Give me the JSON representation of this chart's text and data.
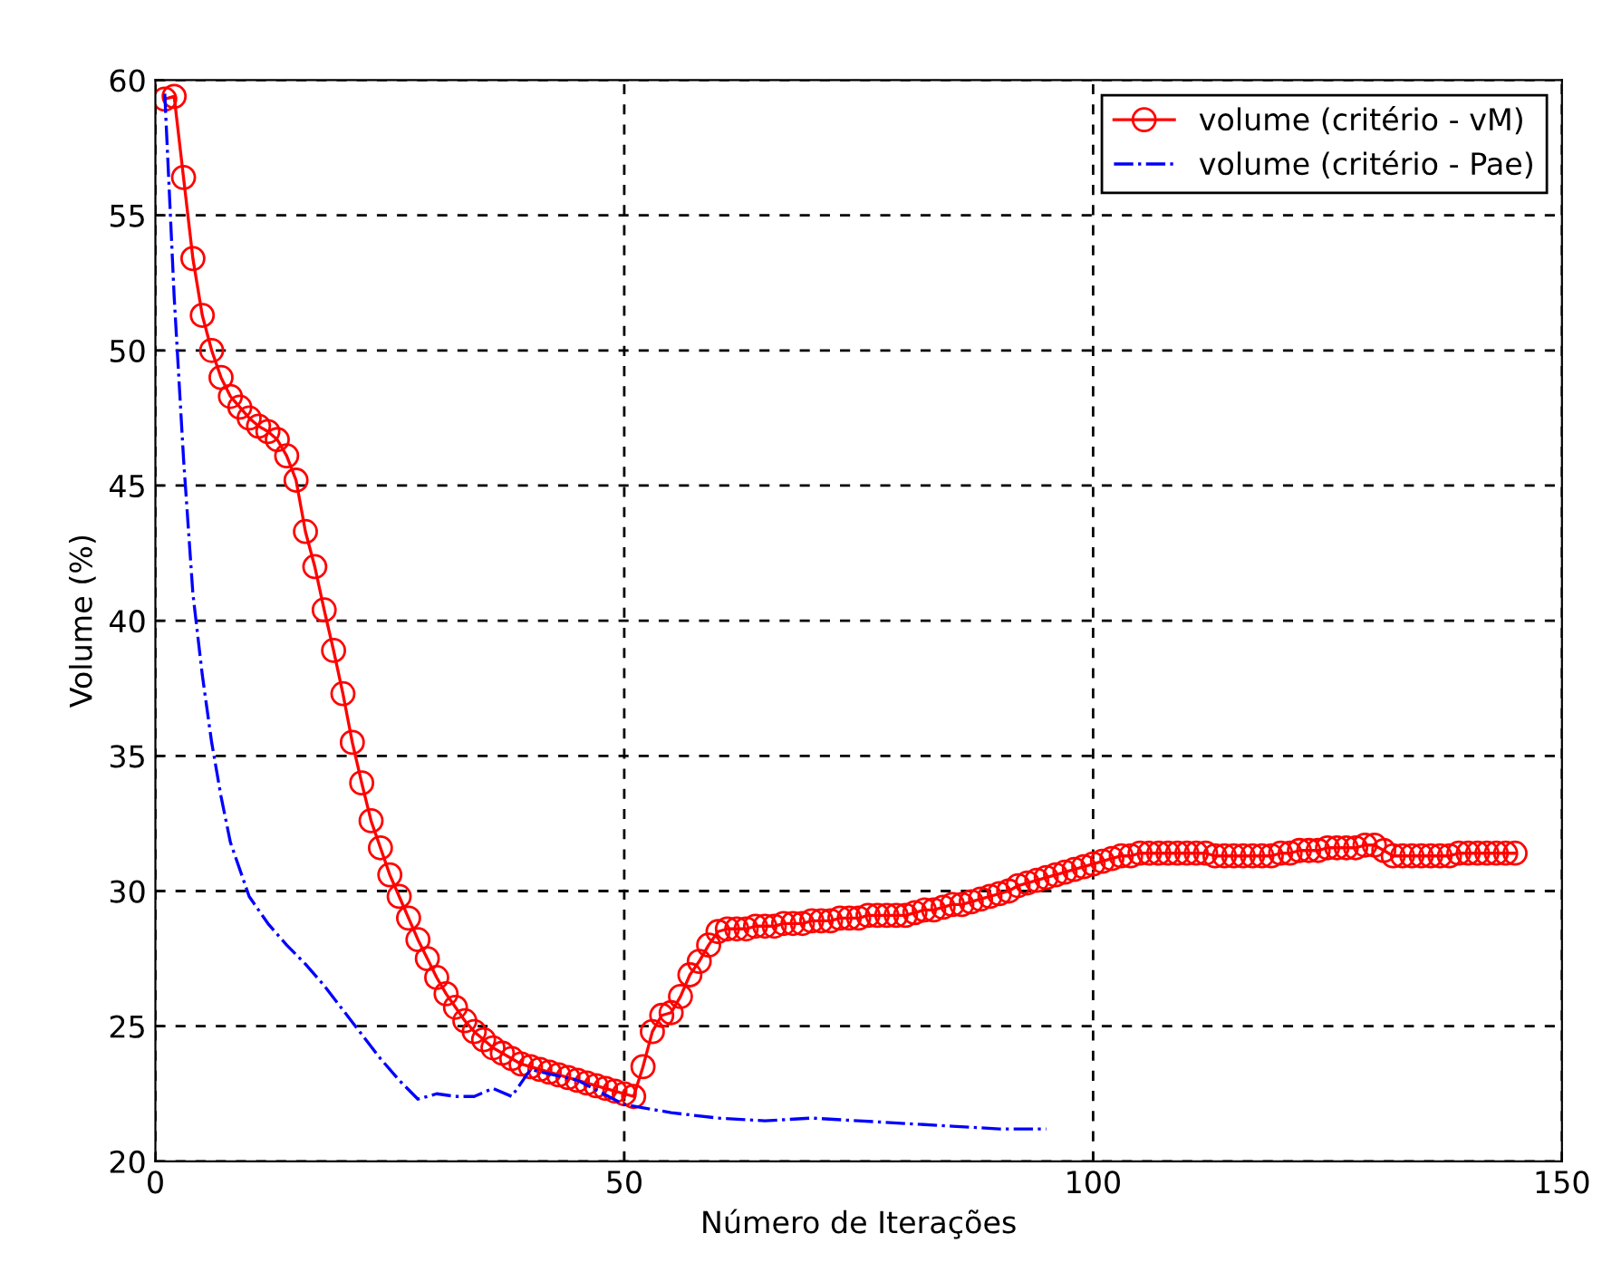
{
  "chart_data": {
    "type": "line",
    "xlabel": "Número de Iterações",
    "ylabel": "Volume (%)",
    "xlim": [
      0,
      150
    ],
    "ylim": [
      20,
      60
    ],
    "xticks": [
      0,
      50,
      100,
      150
    ],
    "yticks": [
      20,
      25,
      30,
      35,
      40,
      45,
      50,
      55,
      60
    ],
    "grid": true,
    "legend": "top right",
    "series": [
      {
        "name": "volume (critério - vM)",
        "color": "#ff0000",
        "marker": "circle",
        "line_style": "solid",
        "x": [
          1,
          2,
          3,
          4,
          5,
          6,
          7,
          8,
          9,
          10,
          11,
          12,
          13,
          14,
          15,
          16,
          17,
          18,
          19,
          20,
          21,
          22,
          23,
          24,
          25,
          26,
          27,
          28,
          29,
          30,
          31,
          32,
          33,
          34,
          35,
          36,
          37,
          38,
          39,
          40,
          41,
          42,
          43,
          44,
          45,
          46,
          47,
          48,
          49,
          50,
          51,
          52,
          53,
          54,
          55,
          56,
          57,
          58,
          59,
          60,
          61,
          62,
          63,
          64,
          65,
          66,
          67,
          68,
          69,
          70,
          71,
          72,
          73,
          74,
          75,
          76,
          77,
          78,
          79,
          80,
          81,
          82,
          83,
          84,
          85,
          86,
          87,
          88,
          89,
          90,
          91,
          92,
          93,
          94,
          95,
          96,
          97,
          98,
          99,
          100,
          101,
          102,
          103,
          104,
          105,
          106,
          107,
          108,
          109,
          110,
          111,
          112,
          113,
          114,
          115,
          116,
          117,
          118,
          119,
          120,
          121,
          122,
          123,
          124,
          125,
          126,
          127,
          128,
          129,
          130,
          131,
          132,
          133,
          134,
          135,
          136,
          137,
          138,
          139,
          140,
          141,
          142,
          143,
          144,
          145
        ],
        "values": [
          59.3,
          59.4,
          56.4,
          53.4,
          51.3,
          50,
          49,
          48.3,
          47.9,
          47.5,
          47.2,
          47,
          46.7,
          46.1,
          45.2,
          43.3,
          42,
          40.4,
          38.9,
          37.3,
          35.5,
          34,
          32.6,
          31.6,
          30.6,
          29.8,
          29,
          28.2,
          27.5,
          26.8,
          26.2,
          25.7,
          25.2,
          24.8,
          24.5,
          24.2,
          24,
          23.8,
          23.6,
          23.5,
          23.4,
          23.3,
          23.2,
          23.1,
          23,
          22.9,
          22.8,
          22.7,
          22.6,
          22.5,
          22.4,
          23.5,
          24.8,
          25.4,
          25.5,
          26.1,
          26.9,
          27.4,
          28,
          28.5,
          28.6,
          28.6,
          28.6,
          28.7,
          28.7,
          28.7,
          28.8,
          28.8,
          28.8,
          28.9,
          28.9,
          28.9,
          29,
          29,
          29,
          29.1,
          29.1,
          29.1,
          29.1,
          29.1,
          29.2,
          29.3,
          29.3,
          29.4,
          29.5,
          29.5,
          29.6,
          29.7,
          29.8,
          29.9,
          30,
          30.2,
          30.3,
          30.4,
          30.5,
          30.6,
          30.7,
          30.8,
          30.9,
          31,
          31.1,
          31.2,
          31.3,
          31.3,
          31.4,
          31.4,
          31.4,
          31.4,
          31.4,
          31.4,
          31.4,
          31.4,
          31.3,
          31.3,
          31.3,
          31.3,
          31.3,
          31.3,
          31.3,
          31.4,
          31.4,
          31.5,
          31.5,
          31.5,
          31.6,
          31.6,
          31.6,
          31.6,
          31.7,
          31.7,
          31.5,
          31.3,
          31.3,
          31.3,
          31.3,
          31.3,
          31.3,
          31.3,
          31.4,
          31.4,
          31.4,
          31.4,
          31.4,
          31.4,
          31.4
        ]
      },
      {
        "name": "volume (critério - Pae)",
        "color": "#0000ff",
        "marker": "none",
        "line_style": "dashdot",
        "x": [
          1,
          2,
          3,
          4,
          5,
          6,
          7,
          8,
          10,
          12,
          14,
          16,
          18,
          20,
          22,
          24,
          26,
          28,
          30,
          32,
          34,
          36,
          38,
          40,
          45,
          50,
          55,
          60,
          65,
          70,
          75,
          80,
          85,
          90,
          95
        ],
        "values": [
          59.5,
          52,
          46,
          41,
          38,
          35.5,
          33.5,
          31.8,
          29.8,
          28.8,
          28,
          27.3,
          26.5,
          25.6,
          24.7,
          23.8,
          23,
          22.3,
          22.5,
          22.4,
          22.4,
          22.7,
          22.4,
          23.4,
          23,
          22.1,
          21.8,
          21.6,
          21.5,
          21.6,
          21.5,
          21.4,
          21.3,
          21.2,
          21.2
        ]
      }
    ]
  }
}
